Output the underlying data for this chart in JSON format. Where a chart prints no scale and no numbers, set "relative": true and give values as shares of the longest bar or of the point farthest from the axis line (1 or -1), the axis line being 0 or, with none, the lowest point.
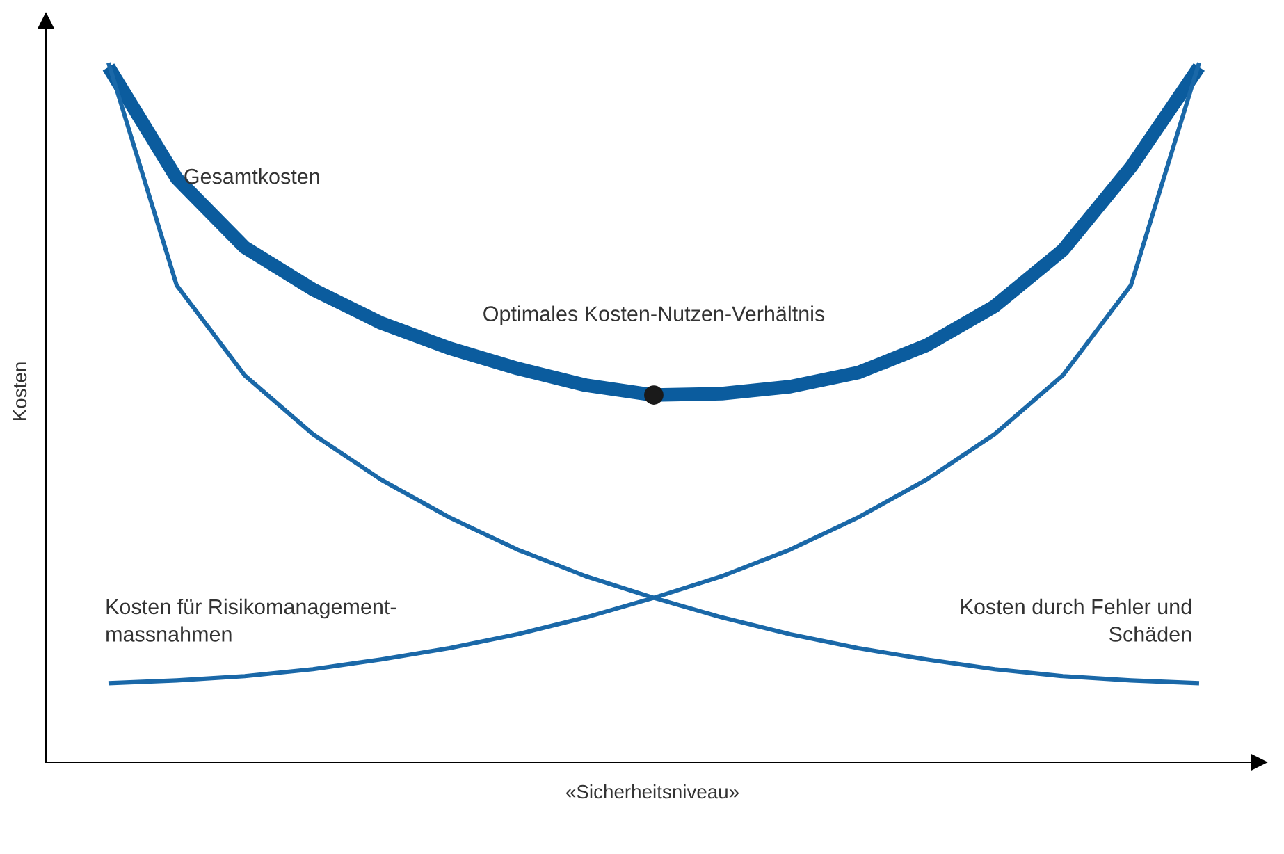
{
  "chart_data": {
    "type": "line",
    "relative": true,
    "xlabel": "«Sicherheitsniveau»",
    "ylabel": "Kosten",
    "grid": false,
    "legend": false,
    "categories": [
      null,
      null,
      null,
      null,
      null,
      null,
      null,
      null,
      null,
      null,
      null,
      null,
      null,
      null,
      null,
      null,
      null
    ],
    "annotations": [
      "Optimales Kosten-Nutzen-Verhältnis"
    ],
    "series": [
      {
        "name": "Gesamtkosten",
        "color": "#0b5c9e",
        "values": [
          0.994,
          0.835,
          0.736,
          0.676,
          0.628,
          0.592,
          0.563,
          0.539,
          0.525,
          0.527,
          0.537,
          0.557,
          0.596,
          0.652,
          0.732,
          0.851,
          0.994
        ]
      },
      {
        "name": "Kosten für Risikomanagement-\nmassnahmen",
        "color": "#1a68a8",
        "values": [
          0.113,
          0.117,
          0.123,
          0.133,
          0.147,
          0.163,
          0.183,
          0.207,
          0.235,
          0.266,
          0.304,
          0.35,
          0.404,
          0.469,
          0.553,
          0.682,
          1
        ]
      },
      {
        "name": "Kosten durch Fehler und\nSchäden",
        "color": "#1a68a8",
        "values": [
          1,
          0.682,
          0.553,
          0.469,
          0.404,
          0.35,
          0.304,
          0.266,
          0.235,
          0.207,
          0.183,
          0.163,
          0.147,
          0.133,
          0.123,
          0.117,
          0.113
        ]
      }
    ]
  }
}
